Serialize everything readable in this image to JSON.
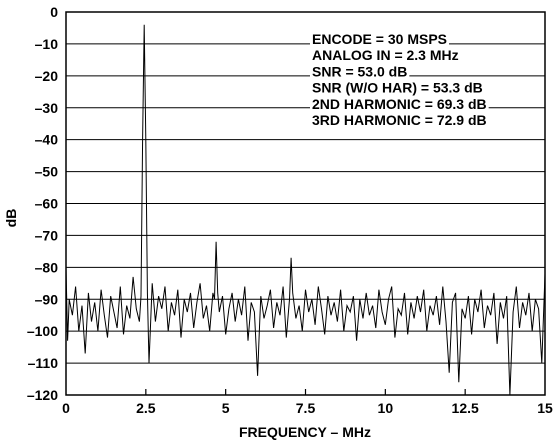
{
  "chart_data": {
    "type": "line",
    "title": "",
    "xlabel": "FREQUENCY – MHz",
    "ylabel": "dB",
    "xlim": [
      0,
      15
    ],
    "ylim": [
      -120,
      0
    ],
    "grid": true,
    "x_ticks": [
      "0",
      "2.5",
      "5",
      "7.5",
      "10",
      "12.5",
      "15"
    ],
    "y_ticks": [
      "0",
      "–10",
      "–20",
      "–30",
      "–40",
      "–50",
      "–60",
      "–70",
      "–80",
      "–90",
      "–100",
      "–110",
      "–120"
    ],
    "annotations": [
      "ENCODE = 30 MSPS",
      "ANALOG IN = 2.3 MHz",
      "SNR = 53.0 dB",
      "SNR (W/O HAR) = 53.3 dB",
      "2ND HARMONIC = 69.3 dB",
      "3RD HARMONIC = 72.9 dB"
    ],
    "series": [
      {
        "color": "#000000",
        "x": [
          0.0,
          0.05,
          0.1,
          0.2,
          0.3,
          0.4,
          0.5,
          0.6,
          0.7,
          0.8,
          0.9,
          1.0,
          1.1,
          1.2,
          1.3,
          1.4,
          1.5,
          1.6,
          1.7,
          1.8,
          1.9,
          2.0,
          2.1,
          2.2,
          2.3,
          2.35,
          2.4,
          2.45,
          2.5,
          2.55,
          2.6,
          2.7,
          2.8,
          2.9,
          3.0,
          3.1,
          3.2,
          3.3,
          3.4,
          3.5,
          3.6,
          3.7,
          3.8,
          3.9,
          4.0,
          4.1,
          4.2,
          4.3,
          4.4,
          4.5,
          4.6,
          4.65,
          4.7,
          4.75,
          4.8,
          4.9,
          5.0,
          5.1,
          5.2,
          5.3,
          5.4,
          5.5,
          5.6,
          5.7,
          5.8,
          5.9,
          6.0,
          6.05,
          6.1,
          6.2,
          6.3,
          6.4,
          6.5,
          6.6,
          6.7,
          6.8,
          6.9,
          7.0,
          7.05,
          7.1,
          7.2,
          7.3,
          7.4,
          7.5,
          7.6,
          7.7,
          7.8,
          7.9,
          8.0,
          8.1,
          8.2,
          8.3,
          8.4,
          8.5,
          8.6,
          8.7,
          8.8,
          8.9,
          9.0,
          9.1,
          9.2,
          9.3,
          9.4,
          9.5,
          9.6,
          9.7,
          9.8,
          9.9,
          10.0,
          10.1,
          10.2,
          10.3,
          10.4,
          10.5,
          10.6,
          10.7,
          10.8,
          10.9,
          11.0,
          11.1,
          11.2,
          11.3,
          11.4,
          11.5,
          11.6,
          11.7,
          11.8,
          11.9,
          12.0,
          12.1,
          12.2,
          12.3,
          12.4,
          12.5,
          12.6,
          12.7,
          12.8,
          12.9,
          13.0,
          13.1,
          13.2,
          13.3,
          13.4,
          13.5,
          13.6,
          13.7,
          13.8,
          13.9,
          14.0,
          14.1,
          14.2,
          14.3,
          14.4,
          14.5,
          14.6,
          14.7,
          14.8,
          14.9,
          15.0
        ],
        "y": [
          -80,
          -103,
          -90,
          -95,
          -86,
          -100,
          -92,
          -107,
          -88,
          -97,
          -91,
          -100,
          -87,
          -95,
          -102,
          -89,
          -94,
          -99,
          -86,
          -101,
          -92,
          -96,
          -83,
          -93,
          -97,
          -89,
          -40,
          -4,
          -40,
          -88,
          -110,
          -85,
          -97,
          -89,
          -93,
          -86,
          -100,
          -91,
          -95,
          -87,
          -102,
          -90,
          -94,
          -88,
          -99,
          -91,
          -85,
          -96,
          -92,
          -100,
          -88,
          -90,
          -72,
          -88,
          -94,
          -89,
          -101,
          -93,
          -88,
          -97,
          -90,
          -95,
          -86,
          -103,
          -91,
          -94,
          -114,
          -101,
          -89,
          -96,
          -92,
          -87,
          -99,
          -91,
          -95,
          -86,
          -102,
          -90,
          -77,
          -88,
          -96,
          -92,
          -100,
          -87,
          -94,
          -90,
          -98,
          -86,
          -93,
          -101,
          -89,
          -95,
          -91,
          -97,
          -87,
          -100,
          -92,
          -94,
          -89,
          -103,
          -90,
          -96,
          -88,
          -95,
          -92,
          -99,
          -87,
          -94,
          -98,
          -90,
          -86,
          -102,
          -93,
          -95,
          -88,
          -101,
          -91,
          -96,
          -89,
          -94,
          -87,
          -100,
          -92,
          -95,
          -89,
          -98,
          -86,
          -97,
          -113,
          -91,
          -88,
          -116,
          -93,
          -96,
          -89,
          -101,
          -90,
          -94,
          -87,
          -99,
          -92,
          -95,
          -88,
          -104,
          -91,
          -96,
          -89,
          -120,
          -94,
          -86,
          -99,
          -91,
          -95,
          -88,
          -100,
          -90,
          -93,
          -110,
          -82
        ]
      }
    ]
  }
}
